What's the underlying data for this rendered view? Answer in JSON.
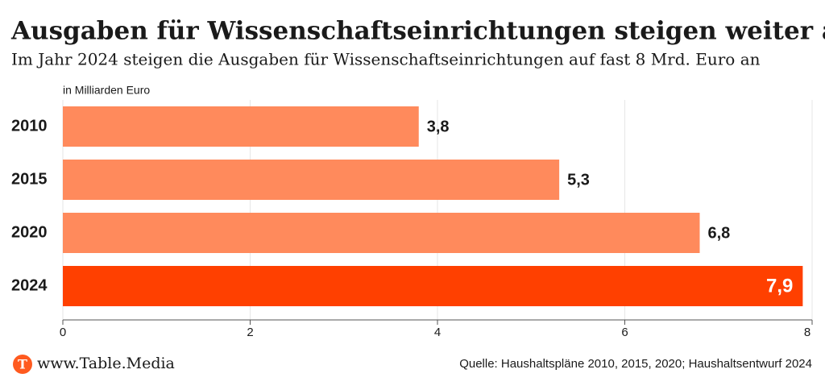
{
  "chart_data": {
    "type": "hbar",
    "title": "Ausgaben für Wissenschaftseinrichtungen steigen weiter an",
    "subtitle": "Im Jahr 2024 steigen die Ausgaben für Wissenschaftseinrichtungen auf fast 8 Mrd. Euro an",
    "unit_label": "in Milliarden Euro",
    "categories": [
      "2010",
      "2015",
      "2020",
      "2024"
    ],
    "values": [
      3.8,
      5.3,
      6.8,
      7.9
    ],
    "value_labels": [
      "3,8",
      "5,3",
      "6,8",
      "7,9"
    ],
    "colors": [
      "#ff8a5c",
      "#ff8a5c",
      "#ff8a5c",
      "#ff4000"
    ],
    "xlim": [
      0,
      8
    ],
    "xticks": [
      0,
      2,
      4,
      6,
      8
    ],
    "grid": true
  },
  "footer": {
    "logo": "T",
    "brand": "www.Table.Media",
    "source": "Quelle: Haushaltspläne 2010, 2015, 2020; Haushaltsentwurf 2024"
  }
}
